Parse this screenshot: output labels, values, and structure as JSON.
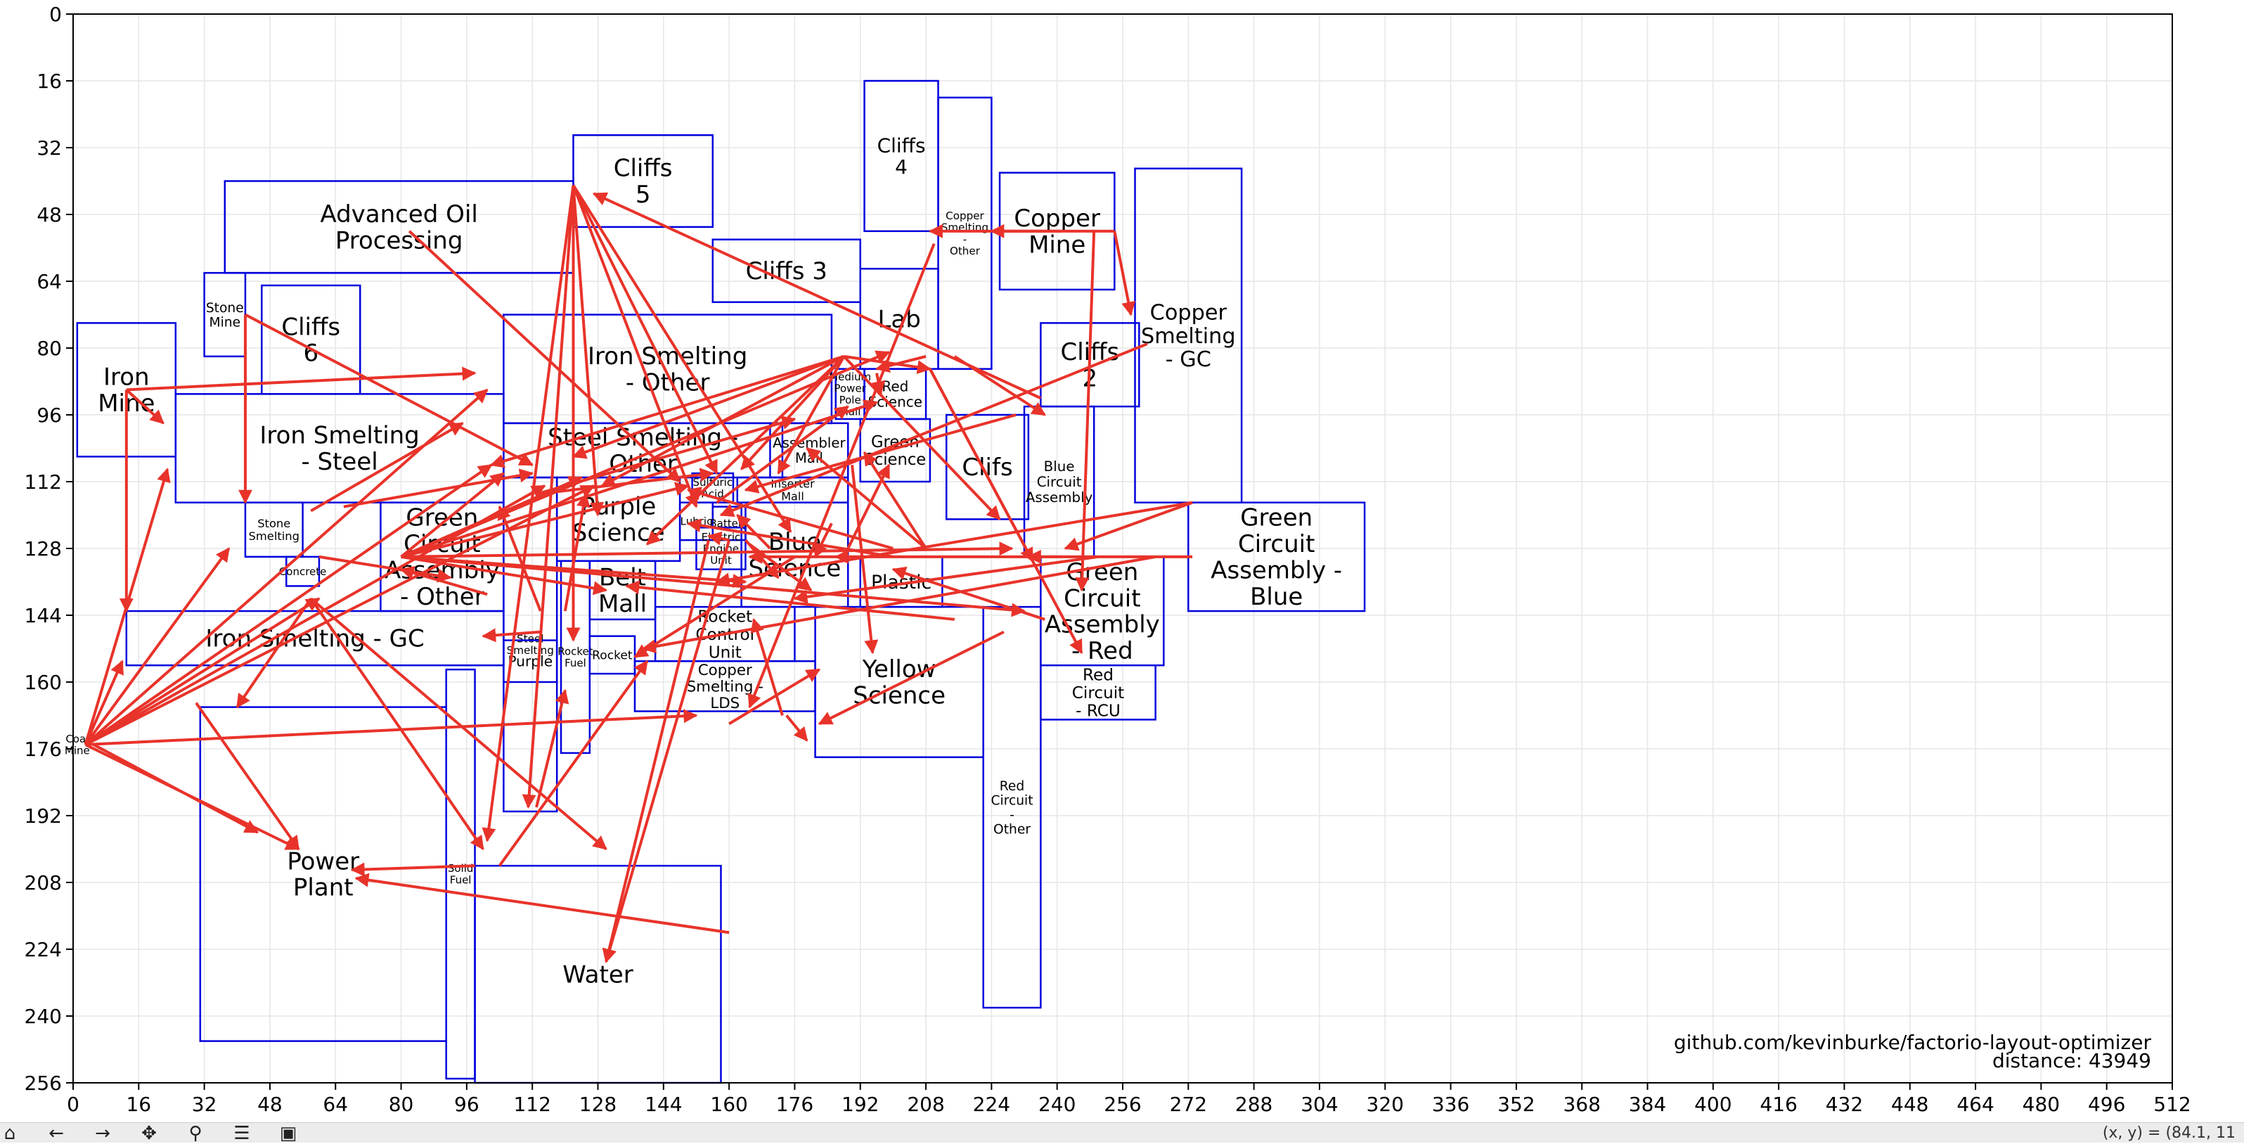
{
  "chart_data": {
    "type": "diagram",
    "xlim": [
      0,
      512
    ],
    "ylim": [
      0,
      256
    ],
    "y_inverted": true,
    "x_ticks": [
      0,
      16,
      32,
      48,
      64,
      80,
      96,
      112,
      128,
      144,
      160,
      176,
      192,
      208,
      224,
      240,
      256,
      272,
      288,
      304,
      320,
      336,
      352,
      368,
      384,
      400,
      416,
      432,
      448,
      464,
      480,
      496,
      512
    ],
    "y_ticks": [
      0,
      16,
      32,
      48,
      64,
      80,
      96,
      112,
      128,
      144,
      160,
      176,
      192,
      208,
      224,
      240,
      256
    ],
    "grid": true,
    "box_color": "#0000dd",
    "arrow_color": "#e8332a",
    "blocks": [
      {
        "name": "Iron Mine",
        "x": 1,
        "y": 74,
        "w": 24,
        "h": 32,
        "label": "Iron\nMine"
      },
      {
        "name": "Stone Mine",
        "x": 32,
        "y": 62,
        "w": 10,
        "h": 20,
        "label": "Stone\nMine"
      },
      {
        "name": "Advanced Oil Processing",
        "x": 37,
        "y": 40,
        "w": 85,
        "h": 22,
        "label": "Advanced Oil\nProcessing"
      },
      {
        "name": "Cliffs 6",
        "x": 46,
        "y": 65,
        "w": 24,
        "h": 26,
        "label": "Cliffs\n6"
      },
      {
        "name": "AOP lower",
        "x": 42,
        "y": 62,
        "w": 80,
        "h": 0,
        "label": ""
      },
      {
        "name": "Iron Smelting - Steel",
        "x": 25,
        "y": 91,
        "w": 80,
        "h": 26,
        "label": "Iron Smelting\n- Steel"
      },
      {
        "name": "Stone Smelting",
        "x": 42,
        "y": 117,
        "w": 14,
        "h": 13,
        "label": "Stone\nSmelting"
      },
      {
        "name": "Concrete",
        "x": 52,
        "y": 130,
        "w": 8,
        "h": 7,
        "label": "Concrete"
      },
      {
        "name": "Green Circuit Assembly - Other",
        "x": 75,
        "y": 117,
        "w": 30,
        "h": 26,
        "label": "Green\nCircuit\nAssembly\n- Other"
      },
      {
        "name": "Iron Smelting - GC",
        "x": 13,
        "y": 143,
        "w": 92,
        "h": 13,
        "label": "Iron Smelting - GC"
      },
      {
        "name": "Power Plant",
        "x": 31,
        "y": 166,
        "w": 60,
        "h": 80,
        "label": "Power\nPlant"
      },
      {
        "name": "Solid Fuel",
        "x": 91,
        "y": 157,
        "w": 7,
        "h": 98,
        "label": "Solid\nFuel"
      },
      {
        "name": "Water",
        "x": 98,
        "y": 204,
        "w": 60,
        "h": 52,
        "label": "Water"
      },
      {
        "name": "Cliffs 5",
        "x": 122,
        "y": 29,
        "w": 34,
        "h": 22,
        "label": "Cliffs\n5"
      },
      {
        "name": "Iron Smelting - Other",
        "x": 105,
        "y": 72,
        "w": 80,
        "h": 26,
        "label": "Iron Smelting\n- Other"
      },
      {
        "name": "Steel Smelting - Other",
        "x": 105,
        "y": 98,
        "w": 68,
        "h": 13,
        "label": "Steel Smelting -\nOther"
      },
      {
        "name": "Steel Smelting",
        "x": 105,
        "y": 111,
        "w": 13,
        "h": 80,
        "label": "Steel\nSmelting"
      },
      {
        "name": "Purple Science",
        "x": 118,
        "y": 111,
        "w": 30,
        "h": 20,
        "label": "Purple\nScience"
      },
      {
        "name": "Purple",
        "x": 105,
        "y": 150,
        "w": 13,
        "h": 10,
        "label": "Purple"
      },
      {
        "name": "Rocket Fuel",
        "x": 119,
        "y": 131,
        "w": 7,
        "h": 46,
        "label": "Rocket\nFuel"
      },
      {
        "name": "Belt Mall",
        "x": 126,
        "y": 131,
        "w": 16,
        "h": 14,
        "label": "Belt\nMall"
      },
      {
        "name": "Rocket",
        "x": 126,
        "y": 149,
        "w": 11,
        "h": 9,
        "label": "Rocket"
      },
      {
        "name": "Rocket Control Unit",
        "x": 142,
        "y": 142,
        "w": 34,
        "h": 13,
        "label": "Rocket\nControl\nUnit"
      },
      {
        "name": "Copper Smelting - LDS",
        "x": 137,
        "y": 155,
        "w": 44,
        "h": 12,
        "label": "Copper\nSmelting -\nLDS"
      },
      {
        "name": "Lubricant",
        "x": 148,
        "y": 117,
        "w": 8,
        "h": 9,
        "label": "Lubric"
      },
      {
        "name": "Battery",
        "x": 156,
        "y": 118,
        "w": 8,
        "h": 8,
        "label": "Battery"
      },
      {
        "name": "Sulfuric Acid",
        "x": 151,
        "y": 110,
        "w": 10,
        "h": 7,
        "label": "Sulfuric\nAcid"
      },
      {
        "name": "Electric Engine Unit",
        "x": 152,
        "y": 123,
        "w": 12,
        "h": 10,
        "label": "Electric\nEngine\nUnit"
      },
      {
        "name": "Blue Science",
        "x": 163,
        "y": 117,
        "w": 26,
        "h": 25,
        "label": "Blue\nScience"
      },
      {
        "name": "Inserter Mall",
        "x": 162,
        "y": 111,
        "w": 27,
        "h": 6,
        "label": "Inserter\nMall"
      },
      {
        "name": "Assembler Mall",
        "x": 170,
        "y": 98,
        "w": 19,
        "h": 13,
        "label": "Assembler\nMall"
      },
      {
        "name": "Cliffs 3",
        "x": 156,
        "y": 54,
        "w": 36,
        "h": 15,
        "label": "Cliffs 3"
      },
      {
        "name": "Cliffs 4",
        "x": 193,
        "y": 16,
        "w": 18,
        "h": 36,
        "label": "Cliffs\n4"
      },
      {
        "name": "Lab",
        "x": 192,
        "y": 61,
        "w": 19,
        "h": 24,
        "label": "Lab"
      },
      {
        "name": "Copper Smelting - Other",
        "x": 211,
        "y": 20,
        "w": 13,
        "h": 65,
        "label": "Copper\nSmelting\n-\nOther"
      },
      {
        "name": "Copper Mine",
        "x": 226,
        "y": 38,
        "w": 28,
        "h": 28,
        "label": "Copper\nMine"
      },
      {
        "name": "Medium Power Pole Mall",
        "x": 186,
        "y": 85,
        "w": 7,
        "h": 12,
        "label": "Medium\nPower\nPole\nMall"
      },
      {
        "name": "Red Science",
        "x": 193,
        "y": 85,
        "w": 15,
        "h": 12,
        "label": "Red\nScience"
      },
      {
        "name": "Green Science",
        "x": 192,
        "y": 97,
        "w": 17,
        "h": 15,
        "label": "Green\nScience"
      },
      {
        "name": "Clifs",
        "x": 213,
        "y": 96,
        "w": 20,
        "h": 25,
        "label": "Clifs"
      },
      {
        "name": "Cliffs 2",
        "x": 236,
        "y": 74,
        "w": 24,
        "h": 20,
        "label": "Cliffs\n2"
      },
      {
        "name": "Blue Circuit Assembly",
        "x": 232,
        "y": 94,
        "w": 17,
        "h": 36,
        "label": "Blue\nCircuit\nAssembly"
      },
      {
        "name": "Copper Smelting - GC",
        "x": 259,
        "y": 37,
        "w": 26,
        "h": 80,
        "label": "Copper\nSmelting\n- GC"
      },
      {
        "name": "Plastic",
        "x": 192,
        "y": 130,
        "w": 20,
        "h": 12,
        "label": "Plastic"
      },
      {
        "name": "Yellow Science",
        "x": 181,
        "y": 142,
        "w": 41,
        "h": 36,
        "label": "Yellow\nScience"
      },
      {
        "name": "Red Circuit - Other",
        "x": 222,
        "y": 142,
        "w": 14,
        "h": 96,
        "label": "Red\nCircuit\n-\nOther"
      },
      {
        "name": "Green Circuit Assembly - Red",
        "x": 236,
        "y": 130,
        "w": 30,
        "h": 26,
        "label": "Green\nCircuit\nAssembly\n- Red"
      },
      {
        "name": "Red Circuit - RCU",
        "x": 236,
        "y": 156,
        "w": 28,
        "h": 13,
        "label": "Red\nCircuit\n- RCU"
      },
      {
        "name": "Green Circuit Assembly - Blue",
        "x": 272,
        "y": 117,
        "w": 43,
        "h": 26,
        "label": "Green\nCircuit\nAssembly -\nBlue"
      },
      {
        "name": "Coal Mine",
        "x": 1,
        "y": 175,
        "w": 0,
        "h": 0,
        "label": "Coal\nMine"
      }
    ],
    "arrows": [
      [
        13,
        90,
        22,
        98
      ],
      [
        13,
        90,
        13,
        143
      ],
      [
        13,
        90,
        98,
        86
      ],
      [
        3,
        175,
        23,
        109
      ],
      [
        3,
        175,
        38,
        128
      ],
      [
        3,
        175,
        101,
        90
      ],
      [
        3,
        175,
        102,
        108
      ],
      [
        3,
        175,
        115,
        113
      ],
      [
        3,
        175,
        127,
        113
      ],
      [
        3,
        175,
        152,
        168
      ],
      [
        3,
        175,
        55,
        200
      ],
      [
        3,
        175,
        12,
        155
      ],
      [
        3,
        175,
        60,
        140
      ],
      [
        42,
        72,
        42,
        117
      ],
      [
        42,
        72,
        112,
        108
      ],
      [
        122,
        41,
        122,
        150
      ],
      [
        122,
        41,
        157,
        110
      ],
      [
        122,
        41,
        175,
        124
      ],
      [
        122,
        41,
        101,
        198
      ],
      [
        122,
        41,
        111,
        190
      ],
      [
        122,
        41,
        128,
        120
      ],
      [
        82,
        52,
        148,
        112
      ],
      [
        254,
        52,
        209,
        52
      ],
      [
        254,
        52,
        258,
        72
      ],
      [
        241,
        52,
        224,
        52
      ],
      [
        249,
        52,
        246,
        138
      ],
      [
        122,
        41,
        152,
        118
      ],
      [
        236,
        92,
        127,
        43
      ],
      [
        262,
        79,
        158,
        120
      ],
      [
        210,
        55,
        165,
        166
      ],
      [
        208,
        82,
        196,
        85
      ],
      [
        188,
        82,
        102,
        108
      ],
      [
        188,
        82,
        122,
        106
      ],
      [
        188,
        82,
        129,
        113
      ],
      [
        188,
        82,
        172,
        110
      ],
      [
        188,
        82,
        163,
        109
      ],
      [
        188,
        82,
        209,
        85
      ],
      [
        188,
        82,
        226,
        121
      ],
      [
        188,
        82,
        140,
        127
      ],
      [
        209,
        85,
        234,
        131
      ],
      [
        209,
        85,
        246,
        153
      ],
      [
        215,
        82,
        237,
        96
      ],
      [
        230,
        96,
        164,
        114
      ],
      [
        273,
        117,
        242,
        128
      ],
      [
        273,
        117,
        157,
        136
      ],
      [
        273,
        130,
        233,
        130
      ],
      [
        241,
        130,
        186,
        130
      ],
      [
        250,
        130,
        176,
        140
      ],
      [
        264,
        130,
        139,
        152
      ],
      [
        237,
        145,
        200,
        133
      ],
      [
        227,
        148,
        182,
        170
      ],
      [
        215,
        145,
        135,
        137
      ],
      [
        208,
        128,
        193,
        105
      ],
      [
        208,
        128,
        179,
        104
      ],
      [
        200,
        128,
        150,
        114
      ],
      [
        190,
        108,
        195,
        153
      ],
      [
        176,
        130,
        137,
        154
      ],
      [
        200,
        130,
        150,
        122
      ],
      [
        185,
        122,
        181,
        130
      ],
      [
        160,
        126,
        130,
        227
      ],
      [
        155,
        126,
        130,
        227
      ],
      [
        160,
        126,
        155,
        125
      ],
      [
        165,
        127,
        180,
        138
      ],
      [
        164,
        126,
        172,
        135
      ],
      [
        170,
        128,
        162,
        120
      ],
      [
        189,
        130,
        165,
        130
      ],
      [
        160,
        220,
        69,
        207
      ],
      [
        98,
        204,
        68,
        205
      ],
      [
        113,
        190,
        120,
        162
      ],
      [
        104,
        204,
        140,
        155
      ],
      [
        101,
        139,
        80,
        133
      ],
      [
        114,
        148,
        100,
        149
      ],
      [
        80,
        130,
        105,
        110
      ],
      [
        80,
        130,
        124,
        111
      ],
      [
        80,
        130,
        150,
        113
      ],
      [
        80,
        130,
        130,
        138
      ],
      [
        80,
        130,
        164,
        136
      ],
      [
        80,
        130,
        199,
        81
      ],
      [
        80,
        130,
        196,
        93
      ],
      [
        80,
        130,
        229,
        128
      ],
      [
        80,
        130,
        232,
        143
      ],
      [
        114,
        143,
        104,
        118
      ],
      [
        120,
        143,
        125,
        115
      ],
      [
        66,
        118,
        112,
        110
      ],
      [
        58,
        119,
        95,
        98
      ],
      [
        160,
        170,
        182,
        157
      ],
      [
        174,
        168,
        179,
        174
      ],
      [
        173,
        168,
        166,
        145
      ],
      [
        58,
        140,
        130,
        200
      ],
      [
        58,
        140,
        100,
        200
      ],
      [
        58,
        140,
        40,
        166
      ],
      [
        30,
        165,
        55,
        200
      ],
      [
        5,
        175,
        45,
        196
      ],
      [
        60,
        130,
        92,
        135
      ],
      [
        113,
        115,
        156,
        110
      ],
      [
        113,
        115,
        176,
        97
      ],
      [
        157,
        117,
        189,
        94
      ],
      [
        196,
        86,
        197,
        91
      ],
      [
        189,
        128,
        199,
        108
      ]
    ]
  },
  "annotation": {
    "repo": "github.com/kevinburke/factorio-layout-optimizer",
    "distance": "distance: 43949"
  },
  "toolbar": {
    "buttons": [
      {
        "name": "home-icon",
        "glyph": "⌂"
      },
      {
        "name": "back-icon",
        "glyph": "←"
      },
      {
        "name": "forward-icon",
        "glyph": "→"
      },
      {
        "name": "pan-icon",
        "glyph": "✥"
      },
      {
        "name": "zoom-icon",
        "glyph": "⚲"
      },
      {
        "name": "configure-icon",
        "glyph": "☰"
      },
      {
        "name": "save-icon",
        "glyph": "▣"
      }
    ],
    "coords": "(x, y) = (84.1, 11"
  }
}
